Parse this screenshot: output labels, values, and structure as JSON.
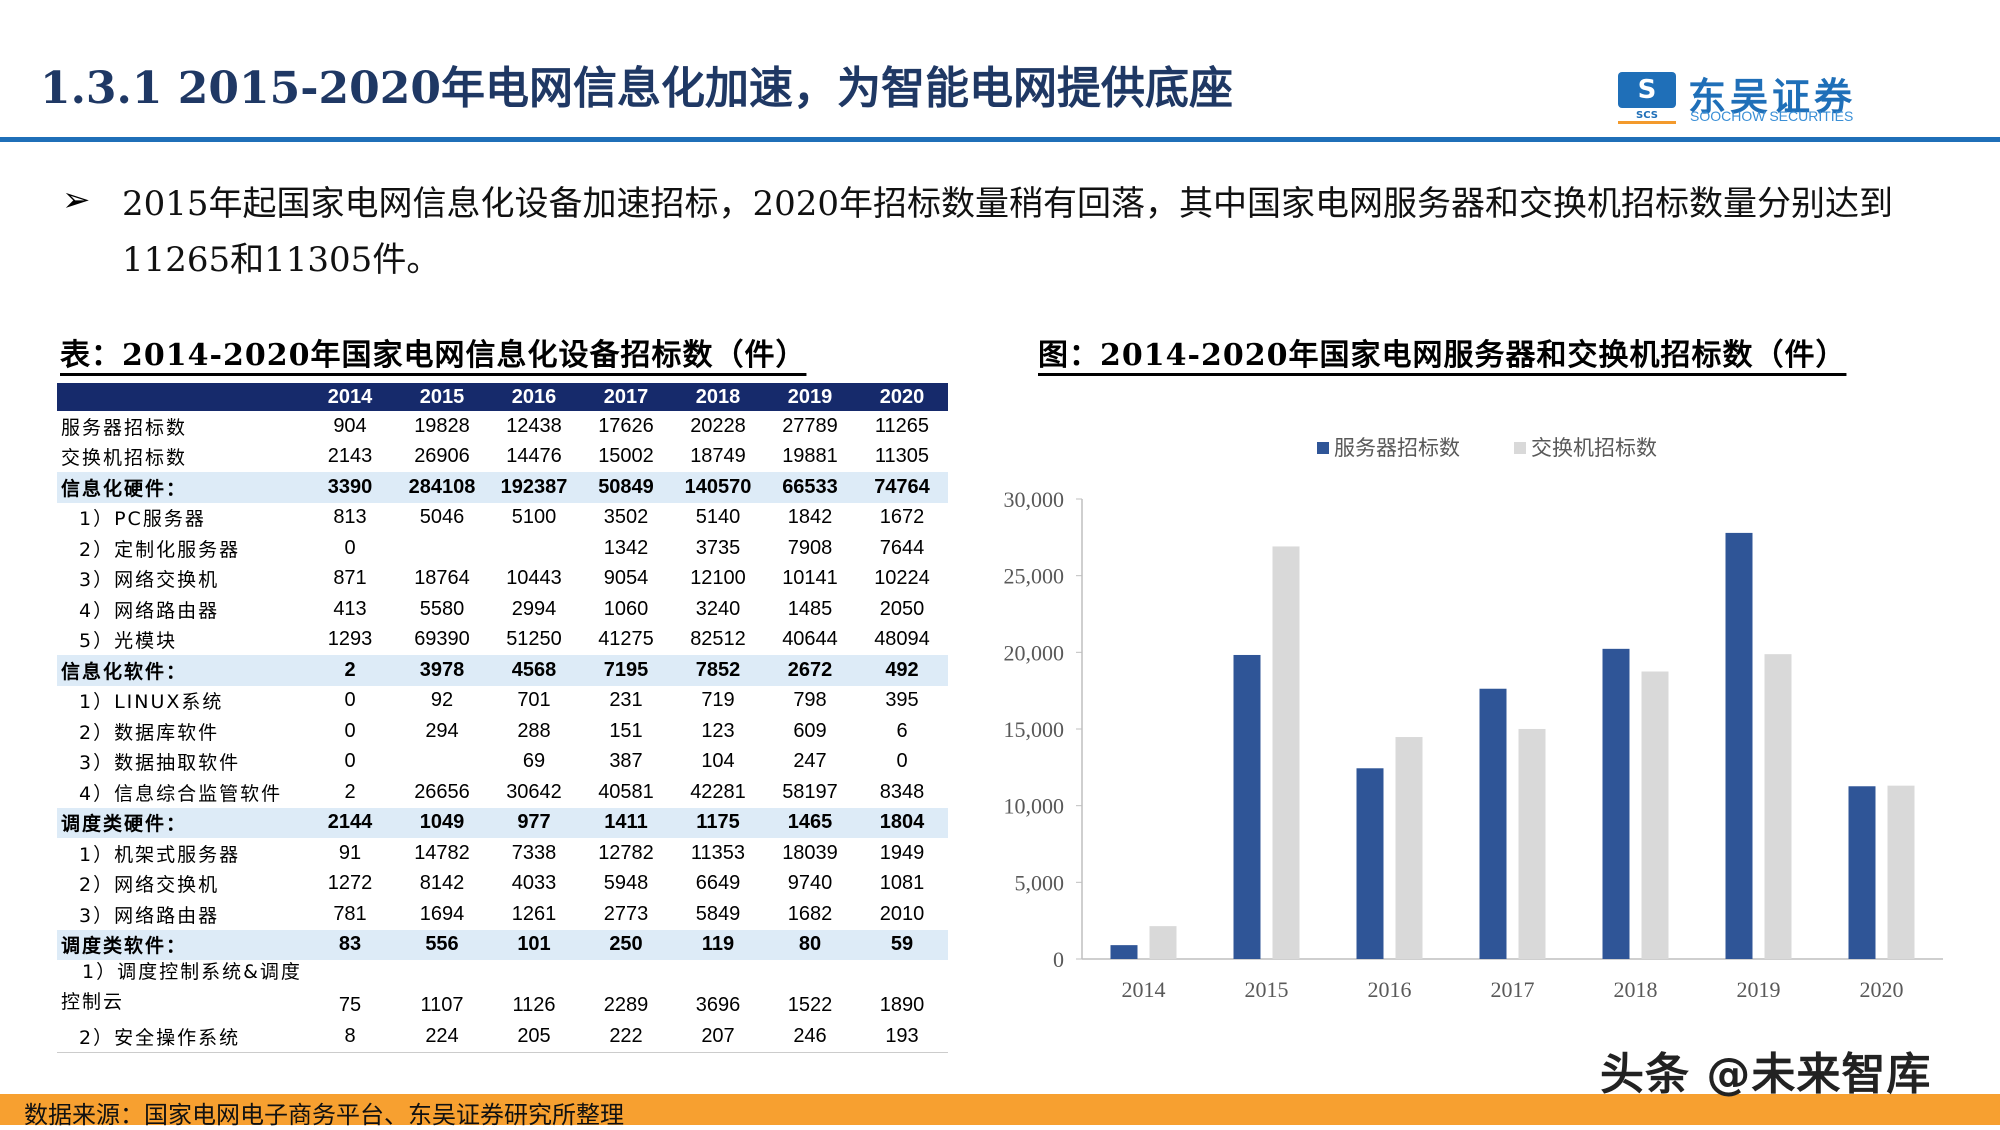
{
  "header": {
    "title": "1.3.1  2015-2020年电网信息化加速，为智能电网提供底座",
    "logo_cn": "东吴证券",
    "logo_en": "SOOCHOW SECURITIES",
    "logo_abbr": "SCS"
  },
  "bullet": {
    "icon": "arrow-bullet-icon",
    "symbol": "➢",
    "text": "2015年起国家电网信息化设备加速招标，2020年招标数量稍有回落，其中国家电网服务器和交换机招标数量分别达到11265和11305件。"
  },
  "table": {
    "title": "表：2014-2020年国家电网信息化设备招标数（件）",
    "columns": [
      "",
      "2014",
      "2015",
      "2016",
      "2017",
      "2018",
      "2019",
      "2020"
    ],
    "rows": [
      {
        "label": "服务器招标数",
        "style": "top",
        "values": [
          "904",
          "19828",
          "12438",
          "17626",
          "20228",
          "27789",
          "11265"
        ]
      },
      {
        "label": "交换机招标数",
        "style": "top",
        "values": [
          "2143",
          "26906",
          "14476",
          "15002",
          "18749",
          "19881",
          "11305"
        ]
      },
      {
        "label": "信息化硬件：",
        "style": "bold",
        "values": [
          "3390",
          "284108",
          "192387",
          "50849",
          "140570",
          "66533",
          "74764"
        ]
      },
      {
        "label": "1）PC服务器",
        "style": "sub1",
        "values": [
          "813",
          "5046",
          "5100",
          "3502",
          "5140",
          "1842",
          "1672"
        ]
      },
      {
        "label": "2）定制化服务器",
        "style": "sub1",
        "values": [
          "0",
          "",
          "",
          "1342",
          "3735",
          "7908",
          "7644"
        ]
      },
      {
        "label": "3）网络交换机",
        "style": "sub1",
        "values": [
          "871",
          "18764",
          "10443",
          "9054",
          "12100",
          "10141",
          "10224"
        ]
      },
      {
        "label": "4）网络路由器",
        "style": "sub1",
        "values": [
          "413",
          "5580",
          "2994",
          "1060",
          "3240",
          "1485",
          "2050"
        ]
      },
      {
        "label": "5）光模块",
        "style": "sub1",
        "values": [
          "1293",
          "69390",
          "51250",
          "41275",
          "82512",
          "40644",
          "48094"
        ]
      },
      {
        "label": "信息化软件：",
        "style": "bold",
        "values": [
          "2",
          "3978",
          "4568",
          "7195",
          "7852",
          "2672",
          "492"
        ]
      },
      {
        "label": "1）LINUX系统",
        "style": "sub1",
        "values": [
          "0",
          "92",
          "701",
          "231",
          "719",
          "798",
          "395"
        ]
      },
      {
        "label": "2）数据库软件",
        "style": "sub1",
        "values": [
          "0",
          "294",
          "288",
          "151",
          "123",
          "609",
          "6"
        ]
      },
      {
        "label": "3）数据抽取软件",
        "style": "sub1",
        "values": [
          "0",
          "",
          "69",
          "387",
          "104",
          "247",
          "0"
        ]
      },
      {
        "label": "4）信息综合监管软件",
        "style": "sub1",
        "values": [
          "2",
          "26656",
          "30642",
          "40581",
          "42281",
          "58197",
          "8348"
        ]
      },
      {
        "label": "调度类硬件：",
        "style": "bold",
        "values": [
          "2144",
          "1049",
          "977",
          "1411",
          "1175",
          "1465",
          "1804"
        ]
      },
      {
        "label": "1）机架式服务器",
        "style": "sub1",
        "values": [
          "91",
          "14782",
          "7338",
          "12782",
          "11353",
          "18039",
          "1949"
        ]
      },
      {
        "label": "2）网络交换机",
        "style": "sub1",
        "values": [
          "1272",
          "8142",
          "4033",
          "5948",
          "6649",
          "9740",
          "1081"
        ]
      },
      {
        "label": "3）网络路由器",
        "style": "sub1",
        "values": [
          "781",
          "1694",
          "1261",
          "2773",
          "5849",
          "1682",
          "2010"
        ]
      },
      {
        "label": "调度类软件：",
        "style": "bold",
        "values": [
          "83",
          "556",
          "101",
          "250",
          "119",
          "80",
          "59"
        ]
      },
      {
        "label": "　1）调度控制系统&调度控制云",
        "style": "two",
        "values": [
          "75",
          "1107",
          "1126",
          "2289",
          "3696",
          "1522",
          "1890"
        ]
      },
      {
        "label": "2）安全操作系统",
        "style": "sub1",
        "values": [
          "8",
          "224",
          "205",
          "222",
          "207",
          "246",
          "193"
        ]
      }
    ]
  },
  "chart_data": {
    "type": "bar",
    "title": "图：2014-2020年国家电网服务器和交换机招标数（件）",
    "categories": [
      "2014",
      "2015",
      "2016",
      "2017",
      "2018",
      "2019",
      "2020"
    ],
    "series": [
      {
        "name": "服务器招标数",
        "color": "#2F5597",
        "values": [
          904,
          19828,
          12438,
          17626,
          20228,
          27789,
          11265
        ]
      },
      {
        "name": "交换机招标数",
        "color": "#D9D9D9",
        "values": [
          2143,
          26906,
          14476,
          15002,
          18749,
          19881,
          11305
        ]
      }
    ],
    "ylim": [
      0,
      30000
    ],
    "yticks": [
      "0",
      "5,000",
      "10,000",
      "15,000",
      "20,000",
      "25,000",
      "30,000"
    ],
    "legend": "top",
    "grid": false
  },
  "footer": {
    "source": "数据来源：国家电网电子商务平台、东吴证券研究所整理",
    "color": "#F7A030"
  },
  "watermark": "头条 @未来智库"
}
